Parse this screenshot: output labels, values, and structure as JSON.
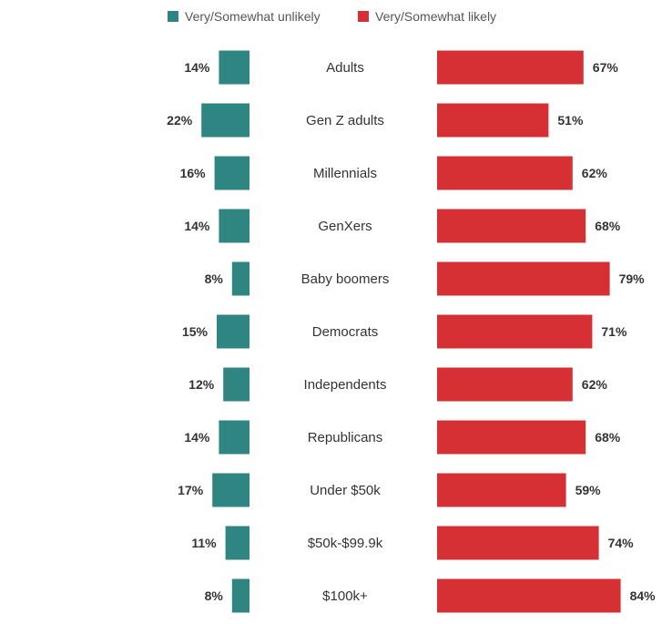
{
  "colors": {
    "unlikely": "#2e8582",
    "likely": "#d63035"
  },
  "chart_data": {
    "type": "bar",
    "orientation": "horizontal-diverging",
    "legend": [
      {
        "name": "Very/Somewhat unlikely",
        "color": "#2e8582"
      },
      {
        "name": "Very/Somewhat likely",
        "color": "#d63035"
      }
    ],
    "legend_position": "top",
    "categories": [
      "Adults",
      "Gen Z adults",
      "Millennials",
      "GenXers",
      "Baby boomers",
      "Democrats",
      "Independents",
      "Republicans",
      "Under $50k",
      "$50k-$99.9k",
      "$100k+"
    ],
    "series": [
      {
        "name": "Very/Somewhat unlikely",
        "values": [
          14,
          22,
          16,
          14,
          8,
          15,
          12,
          14,
          17,
          11,
          8
        ],
        "labels": [
          "14%",
          "22%",
          "16%",
          "14%",
          "8%",
          "15%",
          "12%",
          "14%",
          "17%",
          "11%",
          "8%"
        ]
      },
      {
        "name": "Very/Somewhat likely",
        "values": [
          67,
          51,
          62,
          68,
          79,
          71,
          62,
          68,
          59,
          74,
          84
        ],
        "labels": [
          "67%",
          "51%",
          "62%",
          "68%",
          "79%",
          "71%",
          "62%",
          "68%",
          "59%",
          "74%",
          "84%"
        ]
      }
    ],
    "grid": false,
    "axes_visible": false
  }
}
